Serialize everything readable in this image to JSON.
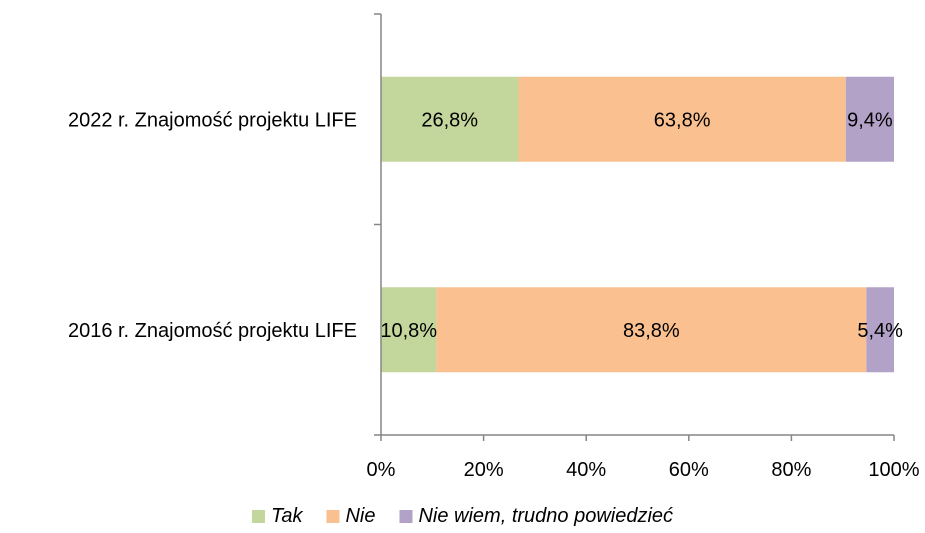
{
  "chart_data": {
    "type": "bar",
    "orientation": "horizontal",
    "stacked": true,
    "percent_stacked": true,
    "categories": [
      "2022 r. Znajomość projektu LIFE",
      "2016 r. Znajomość projektu LIFE"
    ],
    "series": [
      {
        "name": "Tak",
        "values": [
          26.8,
          10.8
        ],
        "labels": [
          "26,8%",
          "10,8%"
        ],
        "color": "#c3d69b"
      },
      {
        "name": "Nie",
        "values": [
          63.8,
          83.8
        ],
        "labels": [
          "63,8%",
          "83,8%"
        ],
        "color": "#fac090"
      },
      {
        "name": "Nie wiem, trudno powiedzieć",
        "values": [
          9.4,
          5.4
        ],
        "labels": [
          "9,4%",
          "5,4%"
        ],
        "color": "#b3a2c7"
      }
    ],
    "xlim": [
      0,
      100
    ],
    "xticks": [
      0,
      20,
      40,
      60,
      80,
      100
    ],
    "xtick_labels": [
      "0%",
      "20%",
      "40%",
      "60%",
      "80%",
      "100%"
    ],
    "title": "",
    "xlabel": "",
    "ylabel": "",
    "grid": false,
    "legend_position": "bottom",
    "axis_color": "#868686"
  }
}
